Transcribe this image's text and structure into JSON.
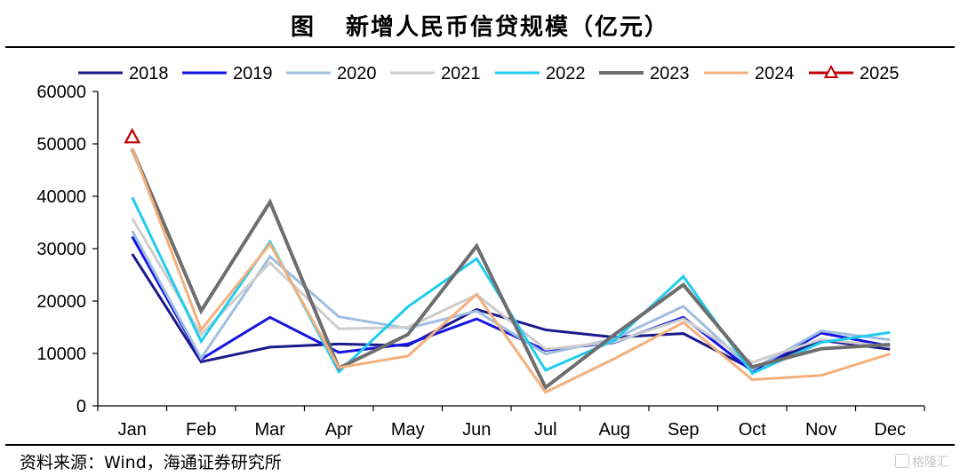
{
  "title_prefix": "图",
  "title_main": "新增人民币信贷规模（亿元）",
  "source": "资料来源：Wind，海通证券研究所",
  "watermark": "格隆汇",
  "chart_data": {
    "type": "line",
    "title": "新增人民币信贷规模（亿元）",
    "xlabel": "",
    "ylabel": "",
    "ylim": [
      0,
      60000
    ],
    "y_ticks": [
      0,
      10000,
      20000,
      30000,
      40000,
      50000,
      60000
    ],
    "y_tick_labels": [
      "0",
      "10000",
      "20000",
      "30000",
      "40000",
      "50000",
      "60000"
    ],
    "grid": false,
    "legend_position": "top",
    "categories": [
      "Jan",
      "Feb",
      "Mar",
      "Apr",
      "May",
      "Jun",
      "Jul",
      "Aug",
      "Sep",
      "Oct",
      "Nov",
      "Dec"
    ],
    "series": [
      {
        "name": "2018",
        "color": "#1a1a8c",
        "marker": "none",
        "values": [
          29000,
          8400,
          11200,
          11800,
          11500,
          18400,
          14500,
          13100,
          13800,
          7000,
          12500,
          10800
        ]
      },
      {
        "name": "2019",
        "color": "#1515e0",
        "marker": "none",
        "values": [
          32300,
          8900,
          16900,
          10200,
          11800,
          16600,
          10600,
          12100,
          16900,
          6600,
          13900,
          11400
        ]
      },
      {
        "name": "2020",
        "color": "#9fbfe0",
        "marker": "none",
        "values": [
          33400,
          9100,
          28500,
          17000,
          14800,
          18100,
          9900,
          12800,
          19000,
          6900,
          14300,
          12600
        ]
      },
      {
        "name": "2021",
        "color": "#cdcdcd",
        "marker": "none",
        "values": [
          35800,
          13600,
          27300,
          14700,
          15000,
          21200,
          10800,
          12200,
          16600,
          8300,
          12700,
          11300
        ]
      },
      {
        "name": "2022",
        "color": "#20ccee",
        "marker": "none",
        "values": [
          39800,
          12300,
          31300,
          6500,
          18900,
          28100,
          6800,
          12500,
          24700,
          6200,
          12100,
          14000
        ]
      },
      {
        "name": "2023",
        "color": "#6e6e6e",
        "marker": "none",
        "values": [
          49000,
          18100,
          38900,
          7200,
          13600,
          30500,
          3500,
          13600,
          23100,
          7400,
          10900,
          11700
        ]
      },
      {
        "name": "2024",
        "color": "#f3b07c",
        "marker": "none",
        "values": [
          49200,
          14500,
          30900,
          7300,
          9500,
          21300,
          2600,
          9000,
          15900,
          5000,
          5800,
          9900
        ]
      },
      {
        "name": "2025",
        "color": "#c00000",
        "marker": "triangle",
        "values": [
          51300,
          null,
          null,
          null,
          null,
          null,
          null,
          null,
          null,
          null,
          null,
          null
        ]
      }
    ]
  }
}
